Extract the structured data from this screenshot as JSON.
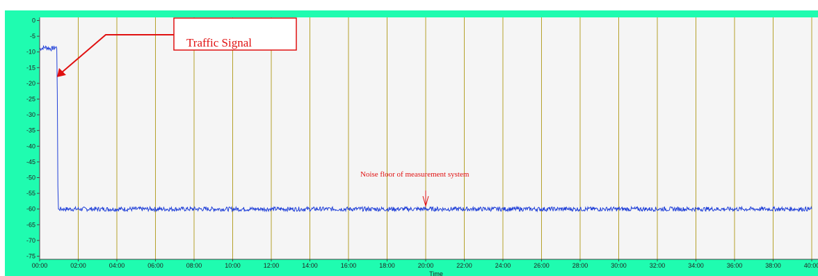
{
  "chart_data": {
    "type": "line",
    "xlabel": "Time",
    "ylabel": "",
    "x_tick_labels": [
      "00:00",
      "02:00",
      "04:00",
      "06:00",
      "08:00",
      "10:00",
      "12:00",
      "14:00",
      "16:00",
      "18:00",
      "20:00",
      "22:00",
      "24:00",
      "26:00",
      "28:00",
      "30:00",
      "32:00",
      "34:00",
      "36:00",
      "38:00",
      "40:00"
    ],
    "y_ticks": [
      0,
      -5,
      -10,
      -15,
      -20,
      -25,
      -30,
      -35,
      -40,
      -45,
      -50,
      -55,
      -60,
      -65,
      -70,
      -75
    ],
    "xlim_minutes": [
      0,
      40
    ],
    "ylim": [
      -76,
      1
    ],
    "grid": "vertical lines at each 2-minute tick",
    "colors": {
      "background": "#1ffcb0",
      "plot_area": "#f5f5f5",
      "series": "#1f3fd8",
      "grid": "#b5a12a",
      "annotation": "#e01010"
    },
    "series": [
      {
        "x_minutes": [
          0.0,
          0.3,
          0.6,
          0.85,
          0.9,
          0.95,
          1.0,
          4,
          8,
          12,
          16,
          20,
          24,
          28,
          32,
          36,
          40
        ],
        "values": [
          -9,
          -8.5,
          -9,
          -8.5,
          -9,
          -60,
          -60,
          -60,
          -60,
          -60,
          -60,
          -60,
          -60,
          -60,
          -60,
          -60,
          -60
        ]
      }
    ],
    "annotations": [
      {
        "text": "Traffic Signal",
        "style": "boxed",
        "points_to": {
          "x_minutes": 0.9,
          "y": -18
        }
      },
      {
        "text": "Noise floor of measurement system",
        "points_to": {
          "x_minutes": 20,
          "y": -59
        }
      }
    ]
  }
}
